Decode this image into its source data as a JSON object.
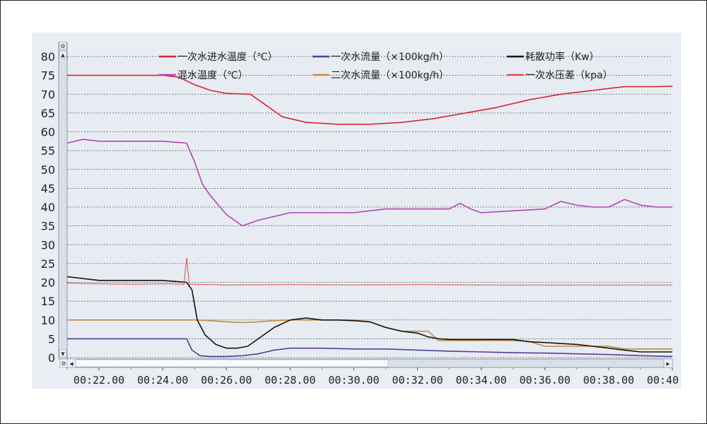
{
  "colors": {
    "primary_temp": "#d8262f",
    "primary_flow": "#5a3aa0",
    "power": "#141414",
    "mix_temp": "#b443b8",
    "secondary_flow": "#c98a3c",
    "pressure_diff": "#e24a4a",
    "grid": "#555555",
    "axis_text": "#222222"
  },
  "scrollbar": {
    "top_icon": "⚙",
    "bottom_icon": "⚙",
    "left_arrow": "◀",
    "right_arrow": "▶",
    "up_arrow": "▲",
    "down_arrow": "▼"
  },
  "chart_data": {
    "type": "line",
    "title": "",
    "xlabel": "",
    "ylabel": "",
    "ylim": [
      0,
      80
    ],
    "xlim": [
      "00:21:00",
      "00:40:00"
    ],
    "grid": true,
    "legend_position": "top",
    "y_ticks": [
      "80",
      "75",
      "70",
      "65",
      "60",
      "55",
      "50",
      "45",
      "40",
      "35",
      "30",
      "25",
      "20",
      "15",
      "10",
      "5",
      "0"
    ],
    "x_tick_labels": [
      "00:22.00",
      "00:24.00",
      "00:26.00",
      "00:28.00",
      "00:30.00",
      "00:32.00",
      "00:34.00",
      "00:36.00",
      "00:38.00",
      "00:40.00"
    ],
    "series": [
      {
        "name": "一次水进水温度（℃）",
        "color": "#d8262f",
        "x": [
          "00:21:00",
          "00:22:00",
          "00:23:00",
          "00:24:00",
          "00:24:30",
          "00:25:00",
          "00:25:30",
          "00:26:00",
          "00:26:45",
          "00:27:15",
          "00:27:45",
          "00:28:30",
          "00:29:30",
          "00:30:30",
          "00:31:30",
          "00:32:30",
          "00:33:30",
          "00:34:30",
          "00:35:30",
          "00:36:30",
          "00:37:30",
          "00:38:30",
          "00:39:30",
          "00:40:00"
        ],
        "y": [
          75,
          75,
          75,
          75,
          74.5,
          72.5,
          71,
          70.2,
          70,
          67,
          64,
          62.5,
          62,
          62,
          62.5,
          63.5,
          65,
          66.5,
          68.5,
          70,
          71,
          72,
          72,
          72.1
        ]
      },
      {
        "name": "混水温度（℃）",
        "color": "#b443b8",
        "x": [
          "00:21:00",
          "00:21:30",
          "00:22:00",
          "00:23:00",
          "00:24:00",
          "00:24:45",
          "00:25:00",
          "00:25:15",
          "00:25:30",
          "00:26:00",
          "00:26:30",
          "00:27:00",
          "00:27:30",
          "00:28:00",
          "00:29:00",
          "00:30:00",
          "00:31:00",
          "00:32:00",
          "00:33:00",
          "00:33:20",
          "00:33:40",
          "00:34:00",
          "00:35:00",
          "00:36:00",
          "00:36:30",
          "00:37:00",
          "00:37:30",
          "00:38:00",
          "00:38:30",
          "00:39:00",
          "00:39:30",
          "00:40:00"
        ],
        "y": [
          57,
          58,
          57.5,
          57.5,
          57.5,
          57,
          52,
          46,
          43,
          38,
          35,
          36.5,
          37.5,
          38.5,
          38.5,
          38.5,
          39.5,
          39.5,
          39.5,
          41,
          39.5,
          38.5,
          39,
          39.5,
          41.5,
          40.5,
          40,
          40,
          42,
          40.5,
          40,
          40
        ]
      },
      {
        "name": "一次水流量（×100kg/h）",
        "color": "#5a3aa0",
        "x": [
          "00:21:00",
          "00:22:00",
          "00:23:00",
          "00:24:00",
          "00:24:45",
          "00:24:55",
          "00:25:10",
          "00:25:30",
          "00:26:00",
          "00:26:30",
          "00:27:00",
          "00:27:30",
          "00:28:00",
          "00:29:00",
          "00:30:00",
          "00:31:00",
          "00:32:00",
          "00:33:00",
          "00:34:00",
          "00:35:00",
          "00:36:00",
          "00:37:00",
          "00:38:00",
          "00:39:00",
          "00:40:00"
        ],
        "y": [
          5,
          5,
          5,
          5,
          5,
          2,
          0.5,
          0.3,
          0.3,
          0.5,
          1,
          2,
          2.5,
          2.5,
          2.3,
          2.3,
          2,
          1.7,
          1.5,
          1.3,
          1.2,
          1,
          0.8,
          0.5,
          0.3
        ]
      },
      {
        "name": "二次水流量（×100kg/h）",
        "color": "#c98a3c",
        "x": [
          "00:21:00",
          "00:22:00",
          "00:23:00",
          "00:24:00",
          "00:25:00",
          "00:25:30",
          "00:26:00",
          "00:26:30",
          "00:27:00",
          "00:27:30",
          "00:28:00",
          "00:29:00",
          "00:30:00",
          "00:30:30",
          "00:31:00",
          "00:31:30",
          "00:32:00",
          "00:32:20",
          "00:32:40",
          "00:33:00",
          "00:34:00",
          "00:35:00",
          "00:35:30",
          "00:36:00",
          "00:37:00",
          "00:38:00",
          "00:38:30",
          "00:39:00",
          "00:40:00"
        ],
        "y": [
          10,
          10,
          10,
          10,
          10,
          9.8,
          9.5,
          9.3,
          9.5,
          9.8,
          10,
          10,
          10,
          9.5,
          8,
          7,
          7,
          7,
          4.5,
          4.5,
          4.5,
          4.5,
          4.3,
          3,
          3,
          3,
          2.3,
          2.3,
          2.3
        ]
      },
      {
        "name": "耗散功率（Kw）",
        "color": "#141414",
        "x": [
          "00:21:00",
          "00:21:30",
          "00:22:00",
          "00:23:00",
          "00:24:00",
          "00:24:45",
          "00:24:55",
          "00:25:05",
          "00:25:20",
          "00:25:40",
          "00:26:00",
          "00:26:20",
          "00:26:40",
          "00:27:00",
          "00:27:30",
          "00:28:00",
          "00:28:30",
          "00:29:00",
          "00:29:30",
          "00:30:00",
          "00:30:30",
          "00:31:00",
          "00:31:30",
          "00:32:00",
          "00:32:20",
          "00:32:40",
          "00:33:00",
          "00:34:00",
          "00:35:00",
          "00:35:30",
          "00:36:00",
          "00:37:00",
          "00:37:30",
          "00:38:00",
          "00:38:30",
          "00:39:00",
          "00:39:30",
          "00:40:00"
        ],
        "y": [
          21.5,
          21,
          20.5,
          20.5,
          20.5,
          20,
          18,
          10,
          6,
          3.5,
          2.5,
          2.5,
          3,
          5,
          8,
          10,
          10.5,
          10,
          10,
          9.8,
          9.5,
          8,
          7,
          6.5,
          5.5,
          5,
          4.8,
          4.8,
          4.8,
          4.2,
          4,
          3.5,
          3,
          2.5,
          2,
          1.5,
          1.5,
          1.5
        ]
      },
      {
        "name": "一次水压差（kpa）",
        "color": "#e24a4a",
        "x": [
          "00:21:00",
          "00:22:00",
          "00:23:00",
          "00:24:00",
          "00:24:40",
          "00:24:45",
          "00:24:50",
          "00:25:00",
          "00:26:00",
          "00:28:00",
          "00:30:00",
          "00:32:00",
          "00:34:00",
          "00:36:00",
          "00:38:00",
          "00:40:00"
        ],
        "y": [
          19.8,
          19.6,
          19.5,
          19.6,
          19.5,
          26.5,
          19.5,
          19.5,
          19.3,
          19.4,
          19.3,
          19.4,
          19.3,
          19.3,
          19.3,
          19.3
        ]
      }
    ]
  }
}
